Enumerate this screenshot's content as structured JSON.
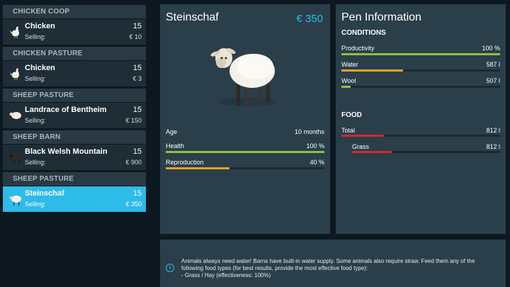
{
  "sidebar": {
    "sections": [
      {
        "header": "CHICKEN COOP",
        "item": {
          "name": "Chicken",
          "count": "15",
          "selling_label": "Selling:",
          "price": "€ 10",
          "icon": "chicken-icon"
        }
      },
      {
        "header": "CHICKEN PASTURE",
        "item": {
          "name": "Chicken",
          "count": "15",
          "selling_label": "Selling:",
          "price": "€ 3",
          "icon": "chicken-icon"
        }
      },
      {
        "header": "SHEEP PASTURE",
        "item": {
          "name": "Landrace of Bentheim",
          "count": "15",
          "selling_label": "Selling:",
          "price": "€ 150",
          "icon": "sheep-icon"
        }
      },
      {
        "header": "SHEEP BARN",
        "item": {
          "name": "Black Welsh Mountain",
          "count": "15",
          "selling_label": "Selling:",
          "price": "€ 900",
          "icon": "black-sheep-icon"
        }
      },
      {
        "header": "SHEEP PASTURE",
        "item": {
          "name": "Steinschaf",
          "count": "15",
          "selling_label": "Selling:",
          "price": "€ 350",
          "icon": "sheep-icon",
          "selected": true
        }
      }
    ]
  },
  "animal": {
    "name": "Steinschaf",
    "price": "€ 350",
    "stats": {
      "age": {
        "label": "Age",
        "value": "10 months"
      },
      "health": {
        "label": "Health",
        "value": "100 %",
        "fraction": 1.0,
        "color": "#8fc23c"
      },
      "reproduction": {
        "label": "Reproduction",
        "value": "40 %",
        "fraction": 0.4,
        "color": "#e5a321"
      }
    }
  },
  "pen": {
    "title": "Pen Information",
    "conditions_header": "CONDITIONS",
    "conditions": {
      "productivity": {
        "label": "Productivity",
        "value": "100 %",
        "fraction": 1.0,
        "color": "#8fc23c"
      },
      "water": {
        "label": "Water",
        "value": "587 l",
        "fraction": 0.39,
        "color": "#e5a321"
      },
      "wool": {
        "label": "Wool",
        "value": "507 l",
        "fraction": 0.06,
        "color": "#8fc23c"
      }
    },
    "food_header": "FOOD",
    "food": {
      "total": {
        "label": "Total",
        "value": "812 l",
        "fraction": 0.27,
        "color": "#d8262e"
      },
      "grass": {
        "label": "Grass",
        "value": "812 l",
        "fraction": 0.27,
        "color": "#d8262e"
      }
    }
  },
  "info": {
    "icon": "info-icon",
    "glyph": "i",
    "lines": [
      "Animals always need water! Barns have built-in water supply. Some animals also require straw. Feed them any of the",
      "following food types (for best results, provide the most effective food type):",
      "- Grass / Hay (effectiveness: 100%)"
    ]
  }
}
